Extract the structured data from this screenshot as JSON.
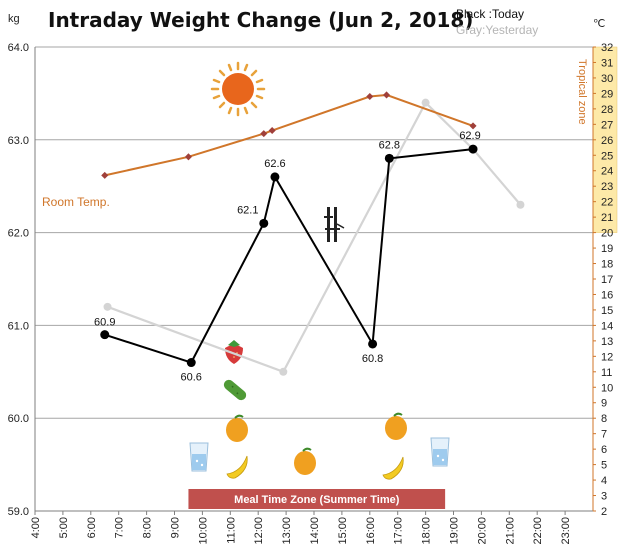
{
  "chart_data": {
    "type": "line",
    "title": "Intraday Weight Change (Jun 2, 2018)",
    "legend": {
      "black_label": "Black :Today",
      "gray_label": "Gray:Yesterday"
    },
    "y_left": {
      "unit": "kg",
      "range": [
        59.0,
        64.0
      ],
      "ticks": [
        "59.0",
        "60.0",
        "61.0",
        "62.0",
        "63.0",
        "64.0"
      ]
    },
    "y_right": {
      "unit": "℃",
      "range": [
        2,
        32
      ],
      "ticks": [
        "2",
        "3",
        "4",
        "5",
        "6",
        "7",
        "8",
        "9",
        "10",
        "11",
        "12",
        "13",
        "14",
        "15",
        "16",
        "17",
        "18",
        "19",
        "20",
        "21",
        "22",
        "23",
        "24",
        "25",
        "26",
        "27",
        "28",
        "29",
        "30",
        "31",
        "32"
      ],
      "zone_label": "Tropical zone",
      "zone_range": [
        20,
        32
      ]
    },
    "x": {
      "range": [
        4,
        24
      ],
      "ticks": [
        "4:00",
        "5:00",
        "6:00",
        "7:00",
        "8:00",
        "9:00",
        "10:00",
        "11:00",
        "12:00",
        "13:00",
        "14:00",
        "15:00",
        "16:00",
        "17:00",
        "18:00",
        "19:00",
        "20:00",
        "21:00",
        "22:00",
        "23:00"
      ]
    },
    "series": [
      {
        "name": "Today",
        "color": "#000000",
        "points": [
          {
            "x": 6.5,
            "y": 60.9,
            "label": "60.9"
          },
          {
            "x": 9.6,
            "y": 60.6,
            "label": "60.6"
          },
          {
            "x": 12.2,
            "y": 62.1,
            "label": "62.1"
          },
          {
            "x": 12.6,
            "y": 62.6,
            "label": "62.6"
          },
          {
            "x": 16.1,
            "y": 60.8,
            "label": "60.8"
          },
          {
            "x": 16.7,
            "y": 62.8,
            "label": "62.8"
          },
          {
            "x": 19.7,
            "y": 62.9,
            "label": "62.9"
          }
        ]
      },
      {
        "name": "Yesterday",
        "color": "#d4d4d4",
        "points": [
          {
            "x": 6.6,
            "y": 61.2
          },
          {
            "x": 12.9,
            "y": 60.5
          },
          {
            "x": 18.0,
            "y": 63.4
          },
          {
            "x": 19.7,
            "y": 62.9
          },
          {
            "x": 21.4,
            "y": 62.3
          }
        ]
      },
      {
        "name": "Room Temp.",
        "color": "#d0762a",
        "points": [
          {
            "x": 6.5,
            "y": 23.7
          },
          {
            "x": 9.5,
            "y": 24.9
          },
          {
            "x": 12.2,
            "y": 26.4
          },
          {
            "x": 12.5,
            "y": 26.6
          },
          {
            "x": 16.0,
            "y": 28.8
          },
          {
            "x": 16.6,
            "y": 28.9
          },
          {
            "x": 19.7,
            "y": 26.9
          }
        ]
      }
    ],
    "annotations": {
      "room_temp_label": "Room Temp.",
      "meal_zone_label": "Meal Time Zone  (Summer Time)",
      "meal_zone_range": [
        9.5,
        18.7
      ],
      "meal_zone_color": "#c0504d"
    },
    "grid": true,
    "icons": [
      "sun-icon",
      "strawberry-icon",
      "cucumber-icon",
      "mango-icon",
      "banana-icon",
      "water-glass-icon",
      "bamboo-icon"
    ]
  }
}
